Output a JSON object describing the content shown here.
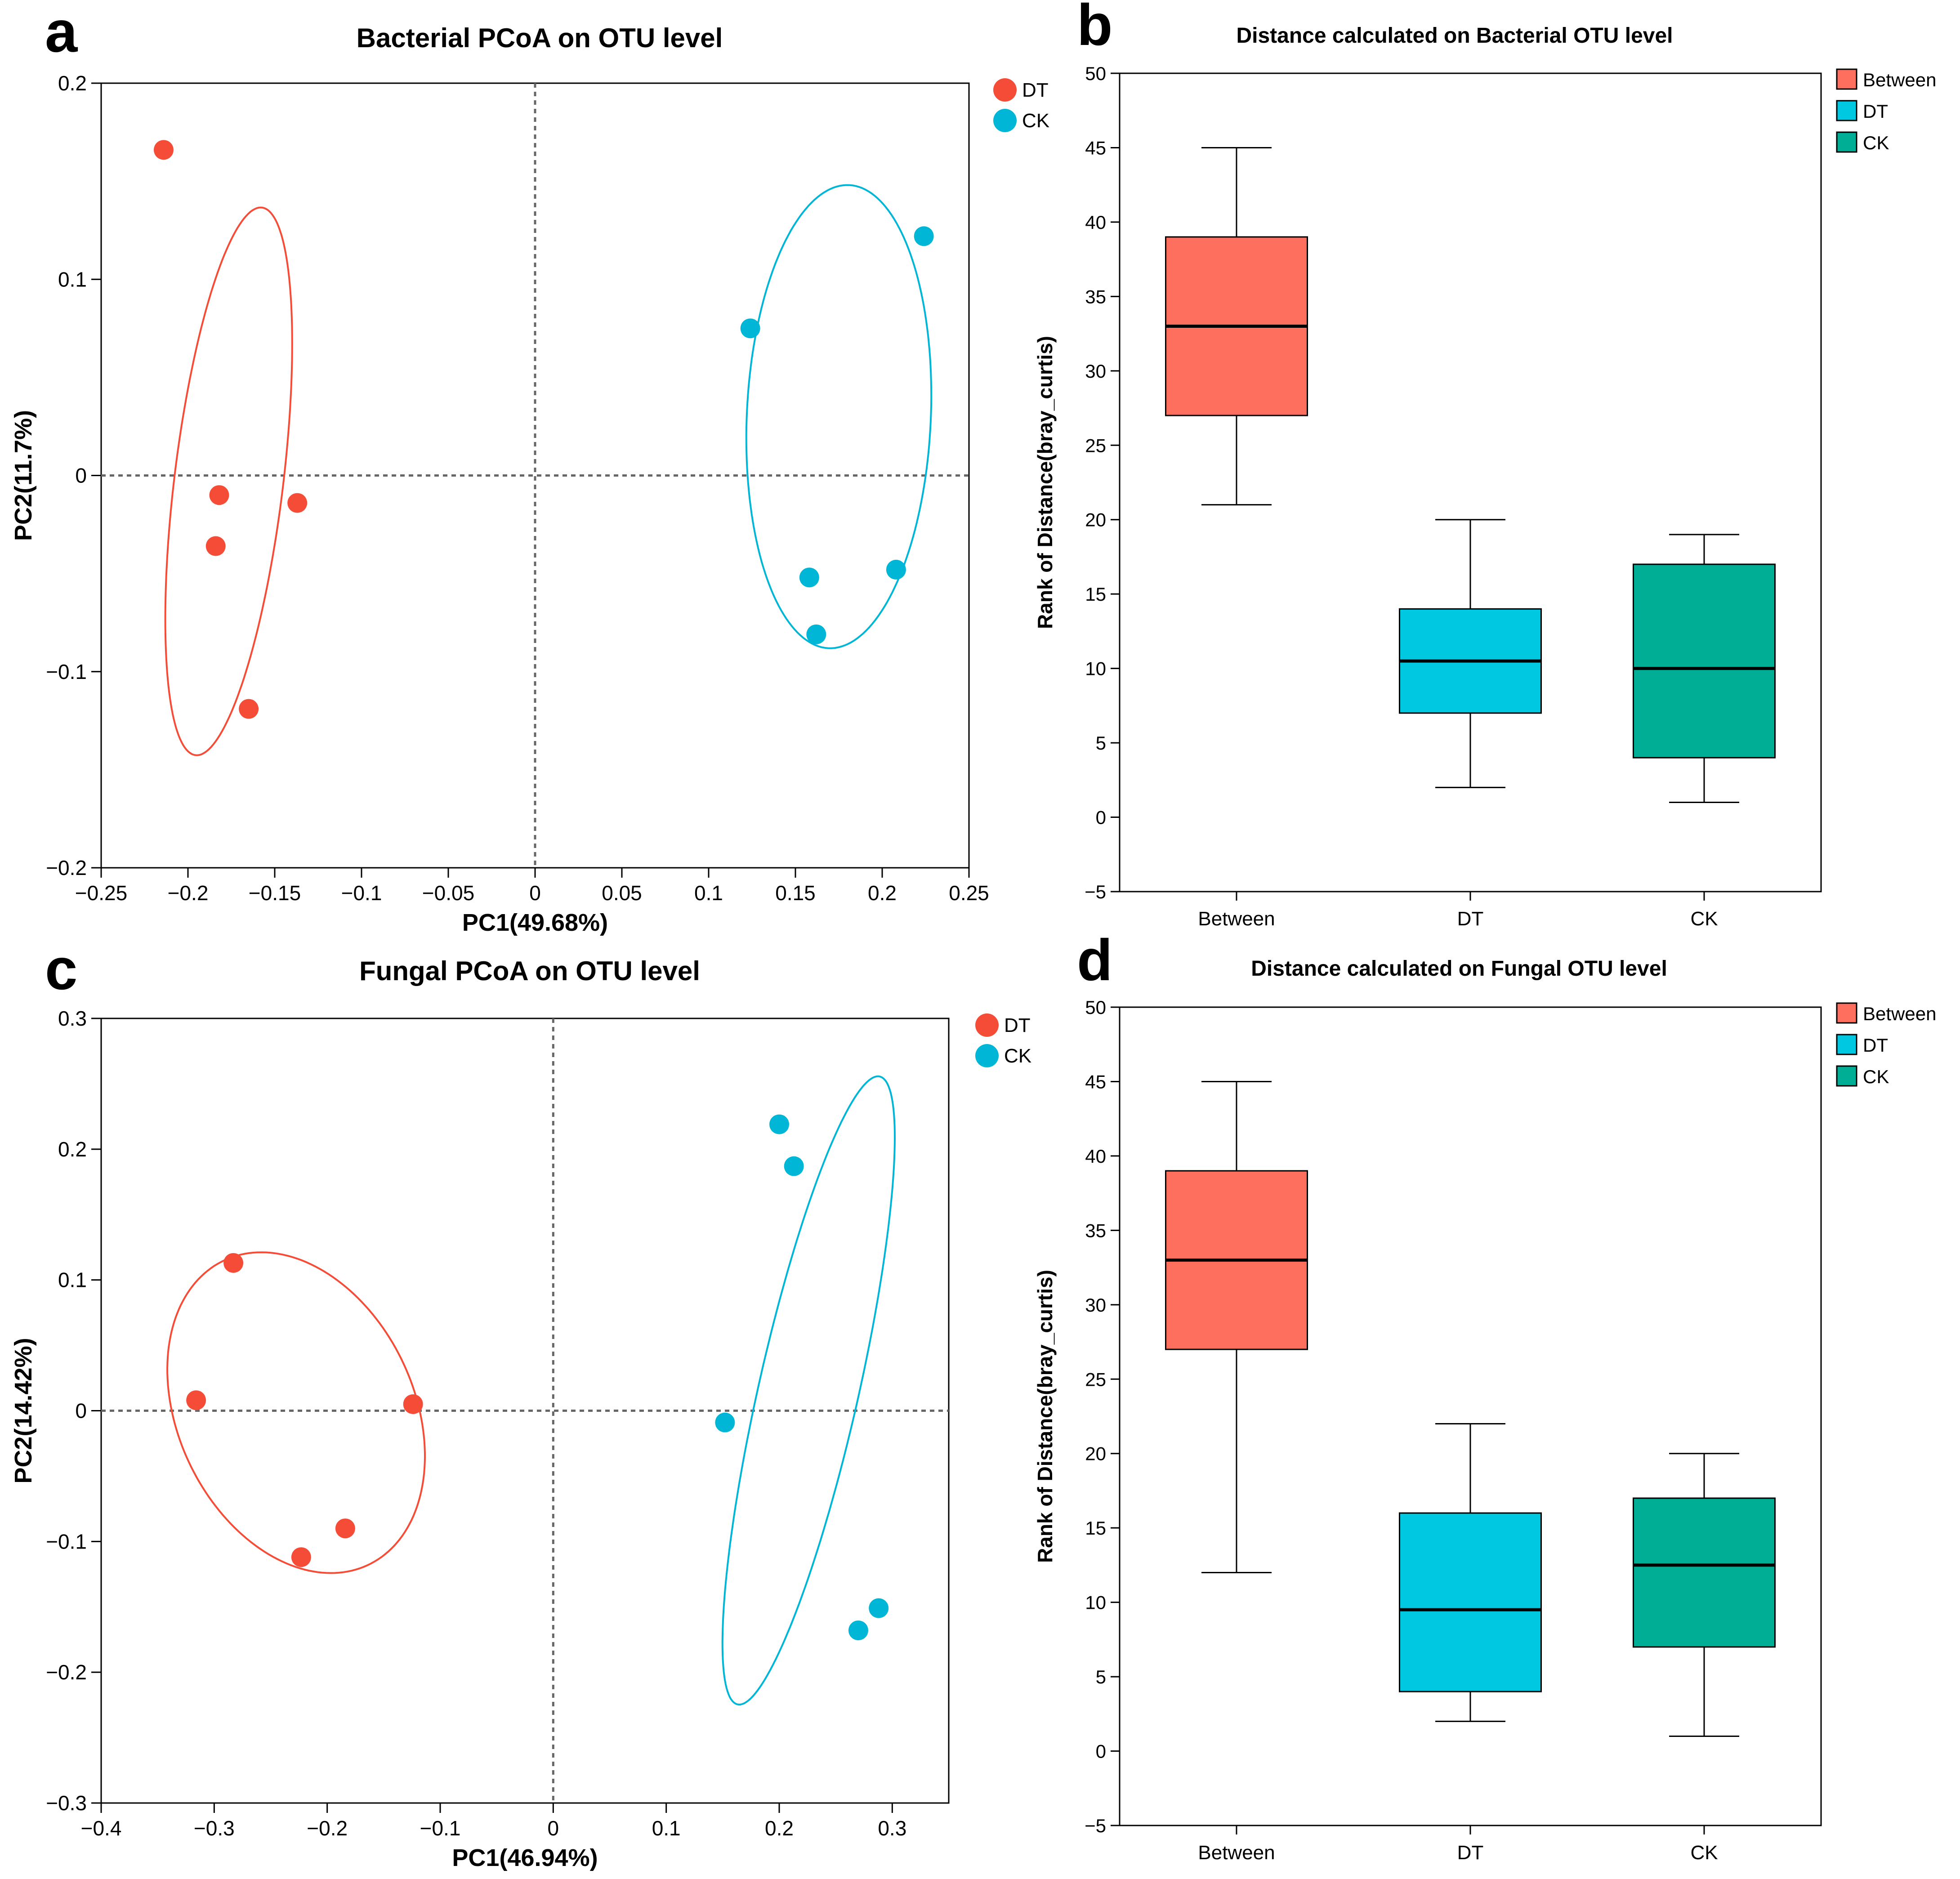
{
  "colors": {
    "dt_point": "#F44C36",
    "ck_point": "#00B6D6",
    "between_box": "#FF6F5E",
    "dt_box": "#00C8E0",
    "ck_box": "#00AD95"
  },
  "chart_data": [
    {
      "panel_letter": "a",
      "type": "scatter",
      "title": "Bacterial PCoA on OTU level",
      "xlabel": "PC1(49.68%)",
      "ylabel": "PC2(11.7%)",
      "xlim": [
        -0.25,
        0.25
      ],
      "ylim": [
        -0.2,
        0.2
      ],
      "xticks": [
        -0.25,
        -0.2,
        -0.15,
        -0.1,
        -0.05,
        0,
        0.05,
        0.1,
        0.15,
        0.2,
        0.25
      ],
      "xtick_labels": [
        "−0.25",
        "−0.2",
        "−0.15",
        "−0.1",
        "−0.05",
        "0",
        "0.05",
        "0.1",
        "0.15",
        "0.2",
        "0.25"
      ],
      "yticks": [
        -0.2,
        -0.1,
        0,
        0.1,
        0.2
      ],
      "ytick_labels": [
        "−0.2",
        "−0.1",
        "0",
        "0.1",
        "0.2"
      ],
      "zero_lines": true,
      "legend": [
        {
          "label": "DT",
          "color": "#F44C36"
        },
        {
          "label": "CK",
          "color": "#00B6D6"
        }
      ],
      "series": [
        {
          "name": "DT",
          "color": "#F44C36",
          "points": [
            [
              -0.214,
              0.166
            ],
            [
              -0.182,
              -0.01
            ],
            [
              -0.184,
              -0.036
            ],
            [
              -0.137,
              -0.014
            ],
            [
              -0.165,
              -0.119
            ]
          ],
          "ellipse": {
            "cx": -0.1765,
            "cy": -0.003,
            "rx": 0.0313,
            "ry": 0.1409,
            "rot_deg": -7.9
          }
        },
        {
          "name": "CK",
          "color": "#00B6D6",
          "points": [
            [
              0.124,
              0.075
            ],
            [
              0.224,
              0.122
            ],
            [
              0.158,
              -0.052
            ],
            [
              0.162,
              -0.081
            ],
            [
              0.208,
              -0.048
            ]
          ],
          "ellipse": {
            "cx": 0.175,
            "cy": 0.03,
            "rx": 0.053,
            "ry": 0.1182,
            "rot_deg": -3.0
          }
        }
      ]
    },
    {
      "panel_letter": "b",
      "type": "box",
      "title": "Distance calculated on Bacterial OTU level",
      "xlabel": "",
      "ylabel": "Rank of Distance(bray_curtis)",
      "ylim": [
        -5,
        50
      ],
      "yticks": [
        -5,
        0,
        5,
        10,
        15,
        20,
        25,
        30,
        35,
        40,
        45,
        50
      ],
      "categories": [
        "Between",
        "DT",
        "CK"
      ],
      "boxes": [
        {
          "name": "Between",
          "color": "#FF6F5E",
          "min": 21,
          "q1": 27,
          "median": 33,
          "q3": 39,
          "max": 45
        },
        {
          "name": "DT",
          "color": "#00C8E0",
          "min": 2,
          "q1": 7,
          "median": 10.5,
          "q3": 14,
          "max": 20
        },
        {
          "name": "CK",
          "color": "#00AD95",
          "min": 1,
          "q1": 4,
          "median": 10,
          "q3": 17,
          "max": 19
        }
      ],
      "legend": [
        {
          "label": "Between",
          "color": "#FF6F5E"
        },
        {
          "label": "DT",
          "color": "#00C8E0"
        },
        {
          "label": "CK",
          "color": "#00AD95"
        }
      ]
    },
    {
      "panel_letter": "c",
      "type": "scatter",
      "title": "Fungal PCoA on OTU level",
      "xlabel": "PC1(46.94%)",
      "ylabel": "PC2(14.42%)",
      "xlim": [
        -0.4,
        0.35
      ],
      "ylim": [
        -0.3,
        0.3
      ],
      "xticks": [
        -0.4,
        -0.3,
        -0.2,
        -0.1,
        0,
        0.1,
        0.2,
        0.3
      ],
      "xtick_labels": [
        "−0.4",
        "−0.3",
        "−0.2",
        "−0.1",
        "0",
        "0.1",
        "0.2",
        "0.3"
      ],
      "yticks": [
        -0.3,
        -0.2,
        -0.1,
        0,
        0.1,
        0.2,
        0.3
      ],
      "ytick_labels": [
        "−0.3",
        "−0.2",
        "−0.1",
        "0",
        "0.1",
        "0.2",
        "0.3"
      ],
      "zero_lines": true,
      "legend": [
        {
          "label": "DT",
          "color": "#F44C36"
        },
        {
          "label": "CK",
          "color": "#00B6D6"
        }
      ],
      "series": [
        {
          "name": "DT",
          "color": "#F44C36",
          "points": [
            [
              -0.283,
              0.113
            ],
            [
              -0.316,
              0.008
            ],
            [
              -0.124,
              0.005
            ],
            [
              -0.184,
              -0.09
            ],
            [
              -0.223,
              -0.112
            ]
          ],
          "ellipse": {
            "cx": -0.2275,
            "cy": -0.0015,
            "rx": 0.1005,
            "ry": 0.1339,
            "rot_deg": 37.4
          }
        },
        {
          "name": "CK",
          "color": "#00B6D6",
          "points": [
            [
              0.2,
              0.219
            ],
            [
              0.213,
              0.187
            ],
            [
              0.152,
              -0.009
            ],
            [
              0.288,
              -0.151
            ],
            [
              0.27,
              -0.168
            ]
          ],
          "ellipse": {
            "cx": 0.226,
            "cy": 0.0155,
            "rx": 0.0438,
            "ry": 0.2482,
            "rot_deg": -14.8
          }
        }
      ]
    },
    {
      "panel_letter": "d",
      "type": "box",
      "title": "Distance calculated on Fungal OTU level",
      "xlabel": "",
      "ylabel": "Rank of Distance(bray_curtis)",
      "ylim": [
        -5,
        50
      ],
      "yticks": [
        -5,
        0,
        5,
        10,
        15,
        20,
        25,
        30,
        35,
        40,
        45,
        50
      ],
      "categories": [
        "Between",
        "DT",
        "CK"
      ],
      "boxes": [
        {
          "name": "Between",
          "color": "#FF6F5E",
          "min": 12,
          "q1": 27,
          "median": 33,
          "q3": 39,
          "max": 45
        },
        {
          "name": "DT",
          "color": "#00C8E0",
          "min": 2,
          "q1": 4,
          "median": 9.5,
          "q3": 16,
          "max": 22
        },
        {
          "name": "CK",
          "color": "#00AD95",
          "min": 1,
          "q1": 7,
          "median": 12.5,
          "q3": 17,
          "max": 20
        }
      ],
      "legend": [
        {
          "label": "Between",
          "color": "#FF6F5E"
        },
        {
          "label": "DT",
          "color": "#00C8E0"
        },
        {
          "label": "CK",
          "color": "#00AD95"
        }
      ]
    }
  ]
}
